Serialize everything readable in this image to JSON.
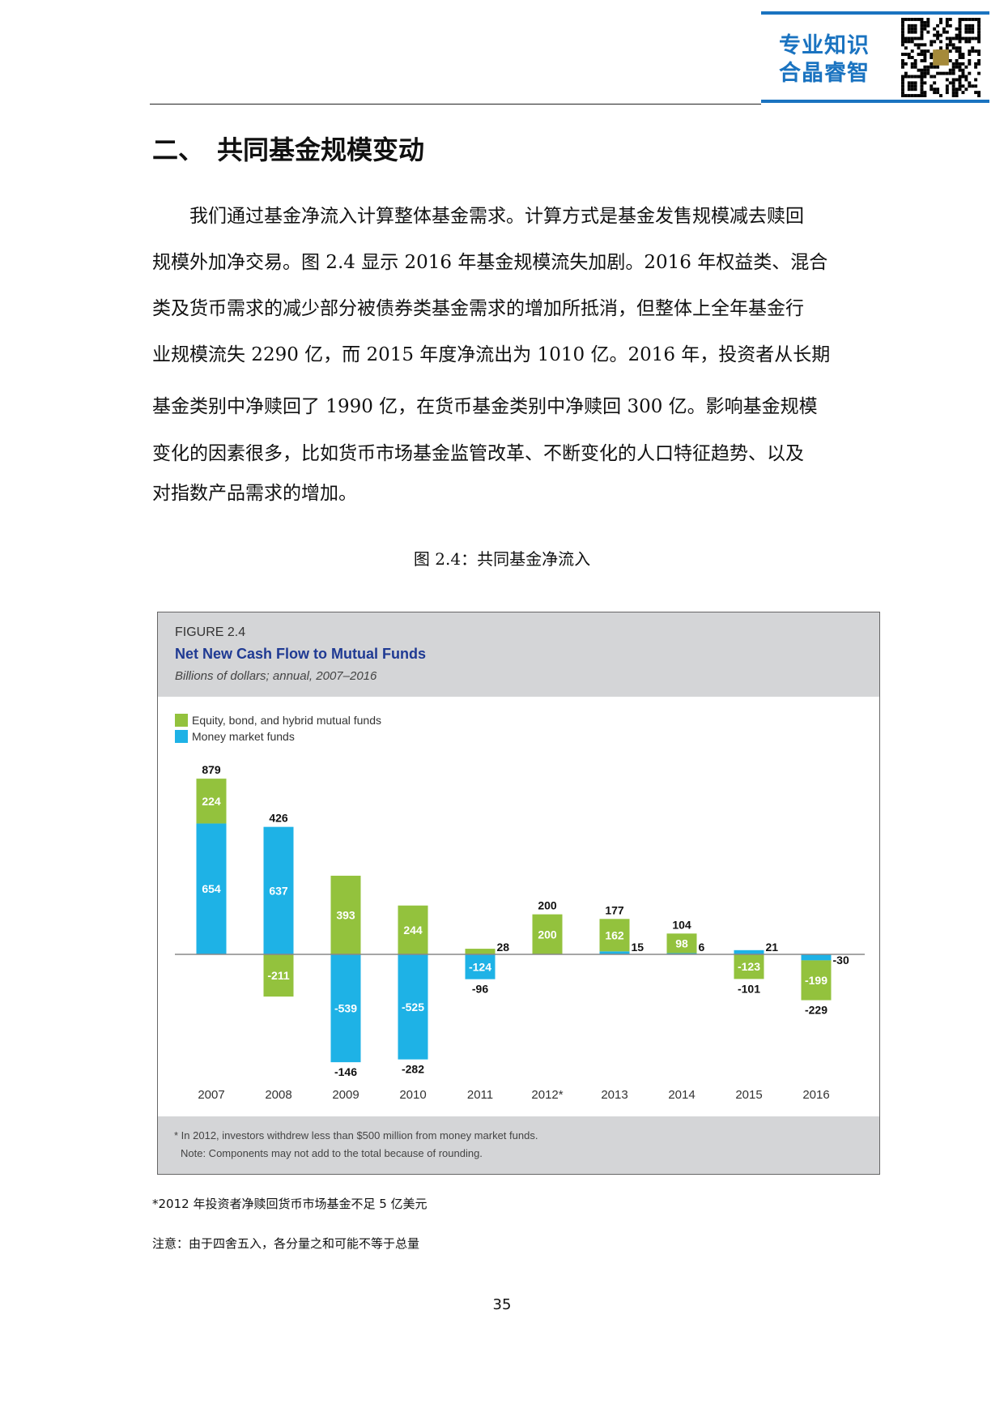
{
  "header": {
    "brand_line1": "专业知识",
    "brand_line2": "合晶睿智",
    "qr_icon": "qr-code-icon"
  },
  "section_title": "二、　共同基金规模变动",
  "paragraph_lines": [
    "　　我们通过基金净流入计算整体基金需求。计算方式是基金发售规模减去赎回",
    "规模外加净交易。图 2.4 显示 2016 年基金规模流失加剧。2016 年权益类、混合",
    "类及货币需求的减少部分被债券类基金需求的增加所抵消，但整体上全年基金行",
    "业规模流失 2290 亿，而 2015 年度净流出为 1010 亿。2016 年，投资者从长期",
    "基金类别中净赎回了 1990 亿，在货币基金类别中净赎回 300 亿。影响基金规模",
    "变化的因素很多，比如货币市场基金监管改革、不断变化的人口特征趋势、以及",
    "对指数产品需求的增加。"
  ],
  "caption": "图 2.4：共同基金净流入",
  "chart_data": {
    "type": "bar",
    "stacked": true,
    "figure_label": "FIGURE 2.4",
    "title": "Net New Cash Flow to Mutual Funds",
    "subtitle": "Billions of dollars; annual, 2007–2016",
    "categories": [
      "2007",
      "2008",
      "2009",
      "2010",
      "2011",
      "2012*",
      "2013",
      "2014",
      "2015",
      "2016"
    ],
    "series": [
      {
        "name": "Money market funds",
        "color": "#1eb2e6",
        "values": [
          654,
          637,
          -539,
          -525,
          -124,
          0,
          15,
          6,
          21,
          -30
        ]
      },
      {
        "name": "Equity, bond, and hybrid mutual funds",
        "color": "#93c23d",
        "values": [
          224,
          -211,
          393,
          244,
          28,
          200,
          162,
          98,
          -123,
          -199
        ]
      }
    ],
    "totals": [
      879,
      426,
      -146,
      -282,
      -96,
      200,
      177,
      104,
      -101,
      -229
    ],
    "ylim": [
      -600,
      900
    ],
    "legend_position": "top-left",
    "footnote": "* In 2012, investors withdrew less than $500 million from money market funds.",
    "note": "Note: Components may not add to the total because of rounding."
  },
  "footnotes": [
    "*2012 年投资者净赎回货币市场基金不足 5 亿美元",
    "注意：由于四舍五入，各分量之和可能不等于总量"
  ],
  "page_number": "35"
}
